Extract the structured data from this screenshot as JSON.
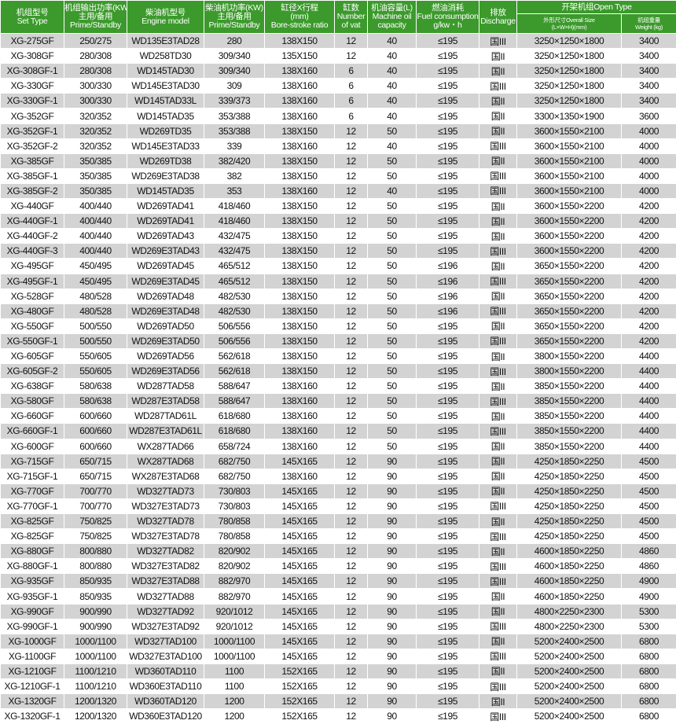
{
  "colors": {
    "header_bg": "#3b9a2b",
    "header_text": "#ffffff",
    "row_alt": "#d3d3d3"
  },
  "header": {
    "set_type": [
      "机组型号",
      "Set Type"
    ],
    "output_power": [
      "机组输出功率(KW)",
      "主用/备用",
      "Prime/Standby"
    ],
    "engine_model": [
      "柴油机型号",
      "Engine model"
    ],
    "engine_power": [
      "柴油机功率(KW)",
      "主用/备用",
      "Prime/Standby"
    ],
    "bore_stroke": [
      "缸径X行程",
      "(mm)",
      "Bore-stroke ratio"
    ],
    "cylinders": [
      "缸数",
      "Number",
      "of vat"
    ],
    "oil_capacity": [
      "机油容量(L)",
      "Machine oil",
      "capacity"
    ],
    "fuel": [
      "燃油消耗",
      "Fuel consumption",
      "g/kw・h"
    ],
    "discharge": [
      "排放",
      "Discharge"
    ],
    "open_type": "开架机组Open Type",
    "size": [
      "外形尺寸Overall Size",
      "(L×W×H)(mm)"
    ],
    "weight": [
      "机组重量",
      "Weight (kg)"
    ]
  },
  "rows": [
    [
      "XG-275GF",
      "250/275",
      "WD135E3TAD28",
      "280",
      "138X150",
      "12",
      "40",
      "≤195",
      "国III",
      "3250×1250×1800",
      "3400"
    ],
    [
      "XG-308GF",
      "280/308",
      "WD258TD30",
      "309/340",
      "135X150",
      "12",
      "40",
      "≤195",
      "国II",
      "3250×1250×1800",
      "3400"
    ],
    [
      "XG-308GF-1",
      "280/308",
      "WD145TAD30",
      "309/340",
      "138X160",
      "6",
      "40",
      "≤195",
      "国II",
      "3250×1250×1800",
      "3400"
    ],
    [
      "XG-330GF",
      "300/330",
      "WD145E3TAD30",
      "309",
      "138X160",
      "6",
      "40",
      "≤195",
      "国III",
      "3250×1250×1800",
      "3400"
    ],
    [
      "XG-330GF-1",
      "300/330",
      "WD145TAD33L",
      "339/373",
      "138X160",
      "6",
      "40",
      "≤195",
      "国II",
      "3250×1250×1800",
      "3400"
    ],
    [
      "XG-352GF",
      "320/352",
      "WD145TAD35",
      "353/388",
      "138X160",
      "6",
      "40",
      "≤195",
      "国II",
      "3300×1350×1900",
      "3600"
    ],
    [
      "XG-352GF-1",
      "320/352",
      "WD269TD35",
      "353/388",
      "138X150",
      "12",
      "50",
      "≤195",
      "国II",
      "3600×1550×2100",
      "4000"
    ],
    [
      "XG-352GF-2",
      "320/352",
      "WD145E3TAD33",
      "339",
      "138X160",
      "12",
      "40",
      "≤195",
      "国III",
      "3600×1550×2100",
      "4000"
    ],
    [
      "XG-385GF",
      "350/385",
      "WD269TD38",
      "382/420",
      "138X150",
      "12",
      "50",
      "≤195",
      "国II",
      "3600×1550×2100",
      "4000"
    ],
    [
      "XG-385GF-1",
      "350/385",
      "WD269E3TAD38",
      "382",
      "138X150",
      "12",
      "50",
      "≤195",
      "国III",
      "3600×1550×2100",
      "4000"
    ],
    [
      "XG-385GF-2",
      "350/385",
      "WD145TAD35",
      "353",
      "138X160",
      "12",
      "40",
      "≤195",
      "国III",
      "3600×1550×2100",
      "4000"
    ],
    [
      "XG-440GF",
      "400/440",
      "WD269TAD41",
      "418/460",
      "138X150",
      "12",
      "50",
      "≤195",
      "国II",
      "3600×1550×2200",
      "4200"
    ],
    [
      "XG-440GF-1",
      "400/440",
      "WD269TAD41",
      "418/460",
      "138X150",
      "12",
      "50",
      "≤195",
      "国II",
      "3600×1550×2200",
      "4200"
    ],
    [
      "XG-440GF-2",
      "400/440",
      "WD269TAD43",
      "432/475",
      "138X150",
      "12",
      "50",
      "≤195",
      "国II",
      "3600×1550×2200",
      "4200"
    ],
    [
      "XG-440GF-3",
      "400/440",
      "WD269E3TAD43",
      "432/475",
      "138X150",
      "12",
      "50",
      "≤195",
      "国III",
      "3600×1550×2200",
      "4200"
    ],
    [
      "XG-495GF",
      "450/495",
      "WD269TAD45",
      "465/512",
      "138X150",
      "12",
      "50",
      "≤196",
      "国II",
      "3650×1550×2200",
      "4200"
    ],
    [
      "XG-495GF-1",
      "450/495",
      "WD269E3TAD45",
      "465/512",
      "138X150",
      "12",
      "50",
      "≤196",
      "国III",
      "3650×1550×2200",
      "4200"
    ],
    [
      "XG-528GF",
      "480/528",
      "WD269TAD48",
      "482/530",
      "138X150",
      "12",
      "50",
      "≤196",
      "国II",
      "3650×1550×2200",
      "4200"
    ],
    [
      "XG-480GF",
      "480/528",
      "WD269E3TAD48",
      "482/530",
      "138X150",
      "12",
      "50",
      "≤196",
      "国III",
      "3650×1550×2200",
      "4200"
    ],
    [
      "XG-550GF",
      "500/550",
      "WD269TAD50",
      "506/556",
      "138X150",
      "12",
      "50",
      "≤195",
      "国II",
      "3650×1550×2200",
      "4200"
    ],
    [
      "XG-550GF-1",
      "500/550",
      "WD269E3TAD50",
      "506/556",
      "138X150",
      "12",
      "50",
      "≤195",
      "国III",
      "3650×1550×2200",
      "4200"
    ],
    [
      "XG-605GF",
      "550/605",
      "WD269TAD56",
      "562/618",
      "138X150",
      "12",
      "50",
      "≤195",
      "国II",
      "3800×1550×2200",
      "4400"
    ],
    [
      "XG-605GF-2",
      "550/605",
      "WD269E3TAD56",
      "562/618",
      "138X150",
      "12",
      "50",
      "≤195",
      "国III",
      "3800×1550×2200",
      "4400"
    ],
    [
      "XG-638GF",
      "580/638",
      "WD287TAD58",
      "588/647",
      "138X160",
      "12",
      "50",
      "≤195",
      "国II",
      "3850×1550×2200",
      "4400"
    ],
    [
      "XG-580GF",
      "580/638",
      "WD287E3TAD58",
      "588/647",
      "138X160",
      "12",
      "50",
      "≤195",
      "国III",
      "3850×1550×2200",
      "4400"
    ],
    [
      "XG-660GF",
      "600/660",
      "WD287TAD61L",
      "618/680",
      "138X160",
      "12",
      "50",
      "≤195",
      "国II",
      "3850×1550×2200",
      "4400"
    ],
    [
      "XG-660GF-1",
      "600/660",
      "WD287E3TAD61L",
      "618/680",
      "138X160",
      "12",
      "50",
      "≤195",
      "国III",
      "3850×1550×2200",
      "4400"
    ],
    [
      "XG-600GF",
      "600/660",
      "WX287TAD66",
      "658/724",
      "138X160",
      "12",
      "50",
      "≤195",
      "国II",
      "3850×1550×2200",
      "4400"
    ],
    [
      "XG-715GF",
      "650/715",
      "WX287TAD68",
      "682/750",
      "145X165",
      "12",
      "90",
      "≤195",
      "国II",
      "4250×1850×2250",
      "4500"
    ],
    [
      "XG-715GF-1",
      "650/715",
      "WX287E3TAD68",
      "682/750",
      "138X160",
      "12",
      "90",
      "≤195",
      "国II",
      "4250×1850×2250",
      "4500"
    ],
    [
      "XG-770GF",
      "700/770",
      "WD327TAD73",
      "730/803",
      "145X165",
      "12",
      "90",
      "≤195",
      "国II",
      "4250×1850×2250",
      "4500"
    ],
    [
      "XG-770GF-1",
      "700/770",
      "WD327E3TAD73",
      "730/803",
      "145X165",
      "12",
      "90",
      "≤195",
      "国III",
      "4250×1850×2250",
      "4500"
    ],
    [
      "XG-825GF",
      "750/825",
      "WD327TAD78",
      "780/858",
      "145X165",
      "12",
      "90",
      "≤195",
      "国II",
      "4250×1850×2250",
      "4500"
    ],
    [
      "XG-825GF",
      "750/825",
      "WD327E3TAD78",
      "780/858",
      "145X165",
      "12",
      "90",
      "≤195",
      "国III",
      "4250×1850×2250",
      "4500"
    ],
    [
      "XG-880GF",
      "800/880",
      "WD327TAD82",
      "820/902",
      "145X165",
      "12",
      "90",
      "≤195",
      "国II",
      "4600×1850×2250",
      "4860"
    ],
    [
      "XG-880GF-1",
      "800/880",
      "WD327E3TAD82",
      "820/902",
      "145X165",
      "12",
      "90",
      "≤195",
      "国III",
      "4600×1850×2250",
      "4860"
    ],
    [
      "XG-935GF",
      "850/935",
      "WD327E3TAD88",
      "882/970",
      "145X165",
      "12",
      "90",
      "≤195",
      "国III",
      "4600×1850×2250",
      "4900"
    ],
    [
      "XG-935GF-1",
      "850/935",
      "WD327TAD88",
      "882/970",
      "145X165",
      "12",
      "90",
      "≤195",
      "国II",
      "4600×1850×2250",
      "4900"
    ],
    [
      "XG-990GF",
      "900/990",
      "WD327TAD92",
      "920/1012",
      "145X165",
      "12",
      "90",
      "≤195",
      "国II",
      "4800×2250×2300",
      "5300"
    ],
    [
      "XG-990GF-1",
      "900/990",
      "WD327E3TAD92",
      "920/1012",
      "145X165",
      "12",
      "90",
      "≤195",
      "国III",
      "4800×2250×2300",
      "5300"
    ],
    [
      "XG-1000GF",
      "1000/1100",
      "WD327TAD100",
      "1000/1100",
      "145X165",
      "12",
      "90",
      "≤195",
      "国II",
      "5200×2400×2500",
      "6800"
    ],
    [
      "XG-1100GF",
      "1000/1100",
      "WD327E3TAD100",
      "1000/1100",
      "145X165",
      "12",
      "90",
      "≤195",
      "国III",
      "5200×2400×2500",
      "6800"
    ],
    [
      "XG-1210GF",
      "1100/1210",
      "WD360TAD110",
      "1100",
      "152X165",
      "12",
      "90",
      "≤195",
      "国II",
      "5200×2400×2500",
      "6800"
    ],
    [
      "XG-1210GF-1",
      "1100/1210",
      "WD360E3TAD110",
      "1100",
      "152X165",
      "12",
      "90",
      "≤195",
      "国III",
      "5200×2400×2500",
      "6800"
    ],
    [
      "XG-1320GF",
      "1200/1320",
      "WD360TAD120",
      "1200",
      "152X165",
      "12",
      "90",
      "≤195",
      "国II",
      "5200×2400×2500",
      "6800"
    ],
    [
      "XG-1320GF-1",
      "1200/1320",
      "WD360E3TAD120",
      "1200",
      "152X165",
      "12",
      "90",
      "≤195",
      "国III",
      "5200×2400×2500",
      "6800"
    ]
  ]
}
